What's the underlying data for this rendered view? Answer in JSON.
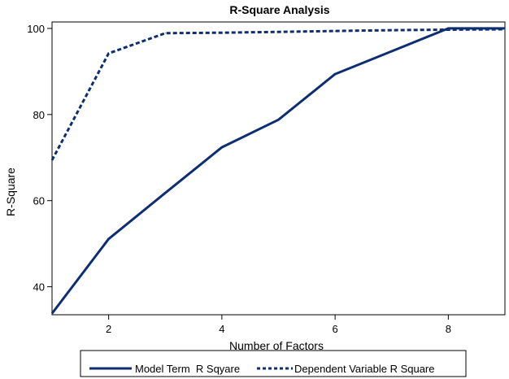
{
  "chart_data": {
    "type": "line",
    "title": "R-Square Analysis",
    "xlabel": "Number of Factors",
    "ylabel": "R-Square",
    "xlim": [
      1,
      9
    ],
    "ylim": [
      33.5,
      101.5
    ],
    "xticks": [
      2,
      4,
      6,
      8
    ],
    "yticks": [
      40,
      60,
      80,
      100
    ],
    "grid": false,
    "legend_position": "bottom",
    "series": [
      {
        "name": "Model Term  R Sqyare",
        "style": "solid",
        "color": "#0d2e73",
        "x": [
          1,
          2,
          3,
          4,
          5,
          6,
          7,
          8,
          9
        ],
        "y": [
          33.8,
          51.1,
          61.8,
          72.4,
          78.8,
          89.4,
          94.7,
          100,
          100
        ]
      },
      {
        "name": "Dependent Variable R Square",
        "style": "dashed",
        "color": "#0d2e73",
        "x": [
          1,
          2,
          3,
          4,
          5,
          6,
          7,
          8,
          9
        ],
        "y": [
          69.4,
          94.2,
          98.9,
          99.0,
          99.2,
          99.4,
          99.6,
          99.7,
          99.8
        ]
      }
    ]
  }
}
